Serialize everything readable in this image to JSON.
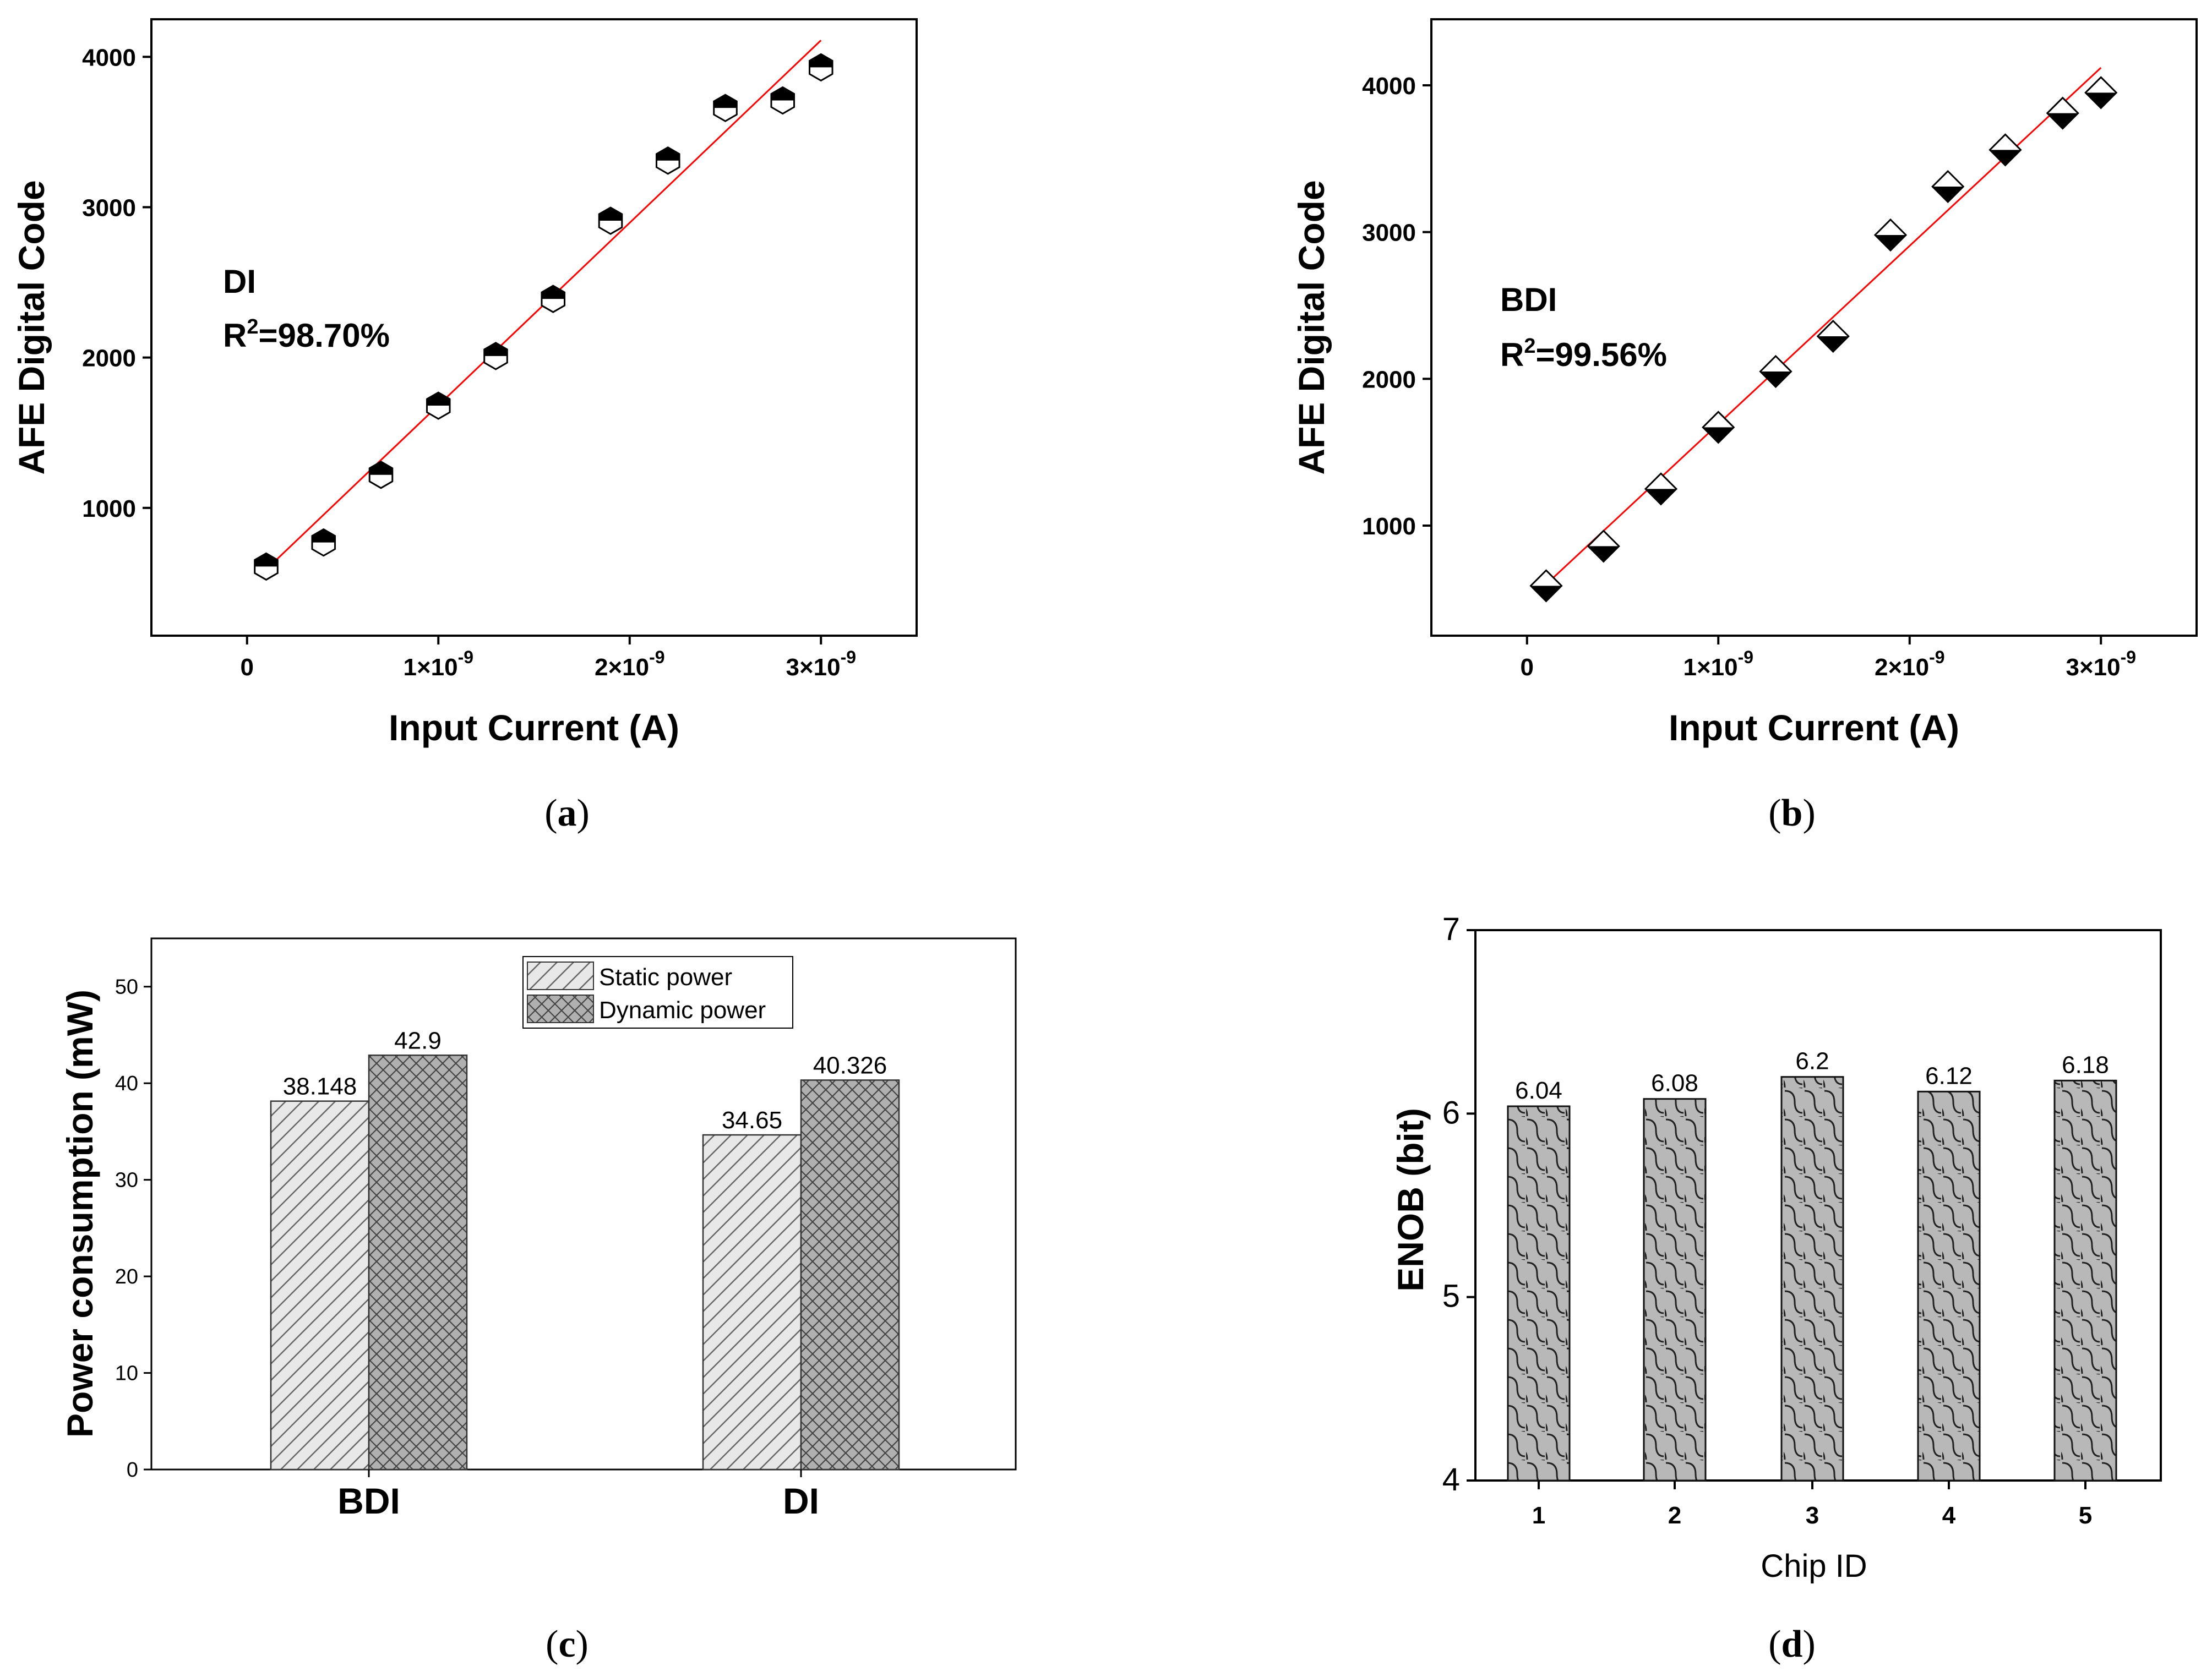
{
  "chart_data": [
    {
      "type": "scatter",
      "panel": "(a)",
      "xlabel": "Input Current (A)",
      "ylabel": "AFE Digital Code",
      "x_tick_labels": [
        "0",
        "1×10",
        "2×10",
        "3×10"
      ],
      "x_tick_exp": "-9",
      "y_tick_labels": [
        "1000",
        "2000",
        "3000",
        "4000"
      ],
      "annotation": "DI",
      "annotation_r2_prefix": "R",
      "annotation_r2_sup": "2",
      "annotation_r2_value": "=98.70%",
      "x": [
        1e-10,
        4e-10,
        7e-10,
        1e-09,
        1.3e-09,
        1.6e-09,
        1.9e-09,
        2.2e-09,
        2.5e-09,
        2.8e-09,
        3e-09
      ],
      "y": [
        610,
        770,
        1220,
        1680,
        2010,
        2390,
        2910,
        3310,
        3660,
        3710,
        3930
      ],
      "fit_line": {
        "x": [
          1e-10,
          3e-09
        ],
        "y": [
          590,
          4110
        ],
        "color": "#ff0000"
      },
      "xlim": [
        -5e-10,
        3.5e-09
      ],
      "ylim": [
        150,
        4250
      ]
    },
    {
      "type": "scatter",
      "panel": "(b)",
      "xlabel": "Input Current (A)",
      "ylabel": "AFE Digital Code",
      "x_tick_labels": [
        "0",
        "1×10",
        "2×10",
        "3×10"
      ],
      "x_tick_exp": "-9",
      "y_tick_labels": [
        "1000",
        "2000",
        "3000",
        "4000"
      ],
      "annotation": "BDI",
      "annotation_r2_prefix": "R",
      "annotation_r2_sup": "2",
      "annotation_r2_value": "=99.56%",
      "x": [
        1e-10,
        4e-10,
        7e-10,
        1e-09,
        1.3e-09,
        1.6e-09,
        1.9e-09,
        2.2e-09,
        2.5e-09,
        2.8e-09,
        3e-09
      ],
      "y": [
        590,
        860,
        1250,
        1670,
        2050,
        2290,
        2980,
        3310,
        3560,
        3810,
        3950
      ],
      "fit_line": {
        "x": [
          1e-10,
          3e-09
        ],
        "y": [
          600,
          4120
        ],
        "color": "#ff0000"
      },
      "xlim": [
        -5e-10,
        3.5e-09
      ],
      "ylim": [
        250,
        4450
      ]
    },
    {
      "type": "bar",
      "panel": "(c)",
      "ylabel": "Power consumption (mW)",
      "categories": [
        "BDI",
        "DI"
      ],
      "series": [
        {
          "name": "Static power",
          "values": [
            38.148,
            34.65
          ],
          "labels": [
            "38.148",
            "34.65"
          ]
        },
        {
          "name": "Dynamic power",
          "values": [
            42.9,
            40.326
          ],
          "labels": [
            "42.9",
            "40.326"
          ]
        }
      ],
      "y_tick_labels": [
        "0",
        "10",
        "20",
        "30",
        "40",
        "50"
      ],
      "ylim": [
        0,
        55
      ],
      "legend_position": "top-center"
    },
    {
      "type": "bar",
      "panel": "(d)",
      "xlabel": "Chip ID",
      "ylabel": "ENOB (bit)",
      "categories": [
        "1",
        "2",
        "3",
        "4",
        "5"
      ],
      "values": [
        6.04,
        6.08,
        6.2,
        6.12,
        6.18
      ],
      "labels": [
        "6.04",
        "6.08",
        "6.2",
        "6.12",
        "6.18"
      ],
      "y_tick_labels": [
        "4",
        "5",
        "6",
        "7"
      ],
      "ylim": [
        4,
        7
      ]
    }
  ]
}
